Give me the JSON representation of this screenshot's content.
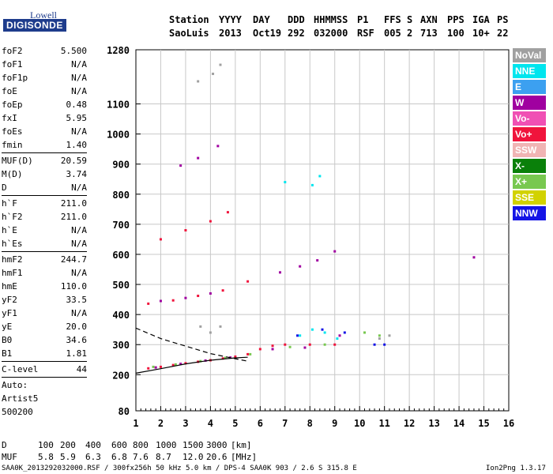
{
  "logo": {
    "line1": "Lowell",
    "line2": "DIGISONDE"
  },
  "header": {
    "row1": [
      "Station",
      "YYYY",
      "DAY",
      "DDD",
      "HHMMSS",
      "P1",
      "FFS",
      "S",
      "AXN",
      "PPS",
      "IGA",
      "PS"
    ],
    "row2": [
      "SaoLuis",
      "2013",
      "Oct19",
      "292",
      "032000",
      "RSF",
      "005",
      "2",
      "713",
      "100",
      "10+",
      "22"
    ]
  },
  "params": {
    "group1": [
      {
        "label": "foF2",
        "value": "5.500"
      },
      {
        "label": "foF1",
        "value": "N/A"
      },
      {
        "label": "foF1p",
        "value": "N/A"
      },
      {
        "label": "foE",
        "value": "N/A"
      },
      {
        "label": "foEp",
        "value": "0.48"
      },
      {
        "label": "fxI",
        "value": "5.95"
      },
      {
        "label": "foEs",
        "value": "N/A"
      },
      {
        "label": "fmin",
        "value": "1.40"
      }
    ],
    "group2": [
      {
        "label": "MUF(D)",
        "value": "20.59"
      },
      {
        "label": "M(D)",
        "value": "3.74"
      },
      {
        "label": "D",
        "value": "N/A"
      }
    ],
    "group3": [
      {
        "label": "h`F",
        "value": "211.0"
      },
      {
        "label": "h`F2",
        "value": "211.0"
      },
      {
        "label": "h`E",
        "value": "N/A"
      },
      {
        "label": "h`Es",
        "value": "N/A"
      }
    ],
    "group4": [
      {
        "label": "hmF2",
        "value": "244.7"
      },
      {
        "label": "hmF1",
        "value": "N/A"
      },
      {
        "label": "hmE",
        "value": "110.0"
      },
      {
        "label": "yF2",
        "value": "33.5"
      },
      {
        "label": "yF1",
        "value": "N/A"
      },
      {
        "label": "yE",
        "value": "20.0"
      },
      {
        "label": "B0",
        "value": "34.6"
      },
      {
        "label": "B1",
        "value": "1.81"
      }
    ],
    "group5": [
      {
        "label": "C-level",
        "value": "44"
      }
    ],
    "auto": {
      "line1": "Auto:",
      "line2": "Artist5",
      "line3": "500200"
    }
  },
  "legend": [
    {
      "label": "NoVal",
      "color": "#a0a0a0"
    },
    {
      "label": "NNE",
      "color": "#00e5ee"
    },
    {
      "label": "E",
      "color": "#3ca0f0"
    },
    {
      "label": "W",
      "color": "#a000a0"
    },
    {
      "label": "Vo-",
      "color": "#f050b4"
    },
    {
      "label": "Vo+",
      "color": "#f0143c"
    },
    {
      "label": "SSW",
      "color": "#f0b4b4"
    },
    {
      "label": "X-",
      "color": "#0a800a"
    },
    {
      "label": "X+",
      "color": "#78c850"
    },
    {
      "label": "SSE",
      "color": "#d2d200"
    },
    {
      "label": "NNW",
      "color": "#1414e6"
    }
  ],
  "bottom": {
    "d_label": "D",
    "d_values": [
      "100",
      "200",
      "400",
      "600",
      "800",
      "1000",
      "1500",
      "3000"
    ],
    "d_unit": "[km]",
    "muf_label": "MUF",
    "muf_values": [
      "5.8",
      "5.9",
      "6.3",
      "6.8",
      "7.6",
      "8.7",
      "12.0",
      "20.6"
    ],
    "muf_unit": "[MHz]"
  },
  "footer": {
    "left": "SAA0K_2013292032000.RSF / 300fx256h 50 kHz 5.0 km / DPS-4 SAA0K 903 / 2.6 S 315.8 E",
    "right": "Ion2Png 1.3.17"
  },
  "chart_data": {
    "type": "scatter",
    "title": "",
    "xlabel": "",
    "ylabel": "",
    "xlim": [
      1,
      16
    ],
    "ylim": [
      80,
      1280
    ],
    "x_ticks": [
      "1",
      "2",
      "3",
      "4",
      "5",
      "6",
      "7",
      "8",
      "9",
      "10",
      "11",
      "12",
      "13",
      "14",
      "15",
      "16"
    ],
    "y_ticks": [
      "80",
      "200",
      "300",
      "400",
      "500",
      "600",
      "700",
      "800",
      "900",
      "1000",
      "1100",
      "1280"
    ],
    "grid": true,
    "series": [
      {
        "name": "Vo+",
        "color": "#f0143c",
        "points": [
          [
            1.5,
            221
          ],
          [
            2.0,
            226
          ],
          [
            2.5,
            232
          ],
          [
            3.0,
            238
          ],
          [
            3.5,
            243
          ],
          [
            4.0,
            248
          ],
          [
            4.5,
            254
          ],
          [
            5.0,
            260
          ],
          [
            5.5,
            268
          ],
          [
            6.0,
            285
          ],
          [
            6.5,
            296
          ],
          [
            7.0,
            300
          ],
          [
            8.0,
            300
          ],
          [
            9.0,
            300
          ],
          [
            1.5,
            436
          ],
          [
            2.5,
            447
          ],
          [
            3.5,
            462
          ],
          [
            4.5,
            480
          ],
          [
            5.5,
            510
          ],
          [
            2.0,
            650
          ],
          [
            3.0,
            680
          ],
          [
            4.0,
            710
          ],
          [
            4.7,
            740
          ]
        ]
      },
      {
        "name": "W",
        "color": "#a000a0",
        "points": [
          [
            1.8,
            224
          ],
          [
            2.8,
            236
          ],
          [
            3.8,
            247
          ],
          [
            4.8,
            257
          ],
          [
            6.5,
            285
          ],
          [
            7.8,
            290
          ],
          [
            9.2,
            330
          ],
          [
            2.0,
            445
          ],
          [
            3.0,
            455
          ],
          [
            4.0,
            470
          ],
          [
            2.8,
            895
          ],
          [
            3.5,
            920
          ],
          [
            4.3,
            960
          ],
          [
            6.8,
            540
          ],
          [
            7.6,
            560
          ],
          [
            8.3,
            580
          ],
          [
            9.0,
            610
          ],
          [
            14.6,
            590
          ]
        ]
      },
      {
        "name": "X+",
        "color": "#78c850",
        "points": [
          [
            1.7,
            226
          ],
          [
            2.6,
            234
          ],
          [
            3.6,
            245
          ],
          [
            4.6,
            256
          ],
          [
            5.6,
            268
          ],
          [
            7.2,
            292
          ],
          [
            8.6,
            300
          ],
          [
            10.2,
            340
          ],
          [
            10.8,
            330
          ]
        ]
      },
      {
        "name": "NNE",
        "color": "#00e5ee",
        "points": [
          [
            7.6,
            330
          ],
          [
            8.1,
            350
          ],
          [
            8.6,
            340
          ],
          [
            9.1,
            320
          ],
          [
            7.0,
            840
          ],
          [
            8.1,
            830
          ],
          [
            8.4,
            860
          ]
        ]
      },
      {
        "name": "NoVal",
        "color": "#a0a0a0",
        "points": [
          [
            3.5,
            1175
          ],
          [
            4.1,
            1200
          ],
          [
            4.4,
            1230
          ],
          [
            3.6,
            360
          ],
          [
            4.0,
            340
          ],
          [
            4.4,
            360
          ],
          [
            10.8,
            320
          ],
          [
            11.2,
            330
          ]
        ]
      },
      {
        "name": "NNW",
        "color": "#1414e6",
        "points": [
          [
            7.5,
            330
          ],
          [
            8.5,
            350
          ],
          [
            9.4,
            340
          ],
          [
            10.6,
            300
          ],
          [
            11.0,
            300
          ]
        ]
      }
    ],
    "curves": [
      {
        "name": "virtual-height-profile",
        "style": "dashed",
        "points": [
          [
            1.0,
            355
          ],
          [
            2.0,
            320
          ],
          [
            3.0,
            295
          ],
          [
            4.0,
            270
          ],
          [
            5.0,
            253
          ],
          [
            5.5,
            245
          ]
        ]
      },
      {
        "name": "true-height-profile",
        "style": "solid",
        "points": [
          [
            1.0,
            205
          ],
          [
            2.0,
            220
          ],
          [
            3.0,
            236
          ],
          [
            4.0,
            248
          ],
          [
            5.0,
            256
          ],
          [
            5.5,
            258
          ]
        ]
      }
    ]
  }
}
